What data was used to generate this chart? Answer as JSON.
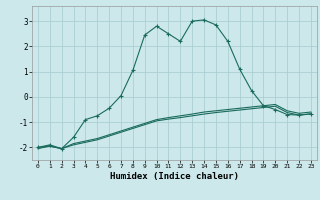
{
  "xlabel": "Humidex (Indice chaleur)",
  "xlim": [
    -0.5,
    23.5
  ],
  "ylim": [
    -2.5,
    3.6
  ],
  "yticks": [
    -2,
    -1,
    0,
    1,
    2,
    3
  ],
  "xticks": [
    0,
    1,
    2,
    3,
    4,
    5,
    6,
    7,
    8,
    9,
    10,
    11,
    12,
    13,
    14,
    15,
    16,
    17,
    18,
    19,
    20,
    21,
    22,
    23
  ],
  "background_color": "#cce8ea",
  "grid_color": "#aacfd3",
  "line_color": "#1a6b5c",
  "line1_x": [
    0,
    1,
    2,
    3,
    4,
    5,
    6,
    7,
    8,
    9,
    10,
    11,
    12,
    13,
    14,
    15,
    16,
    17,
    18,
    19,
    20,
    21,
    22,
    23
  ],
  "line1_y": [
    -2.0,
    -1.95,
    -2.05,
    -1.85,
    -1.75,
    -1.65,
    -1.5,
    -1.35,
    -1.2,
    -1.05,
    -0.9,
    -0.82,
    -0.75,
    -0.68,
    -0.6,
    -0.55,
    -0.5,
    -0.45,
    -0.4,
    -0.35,
    -0.3,
    -0.55,
    -0.65,
    -0.6
  ],
  "line2_x": [
    0,
    1,
    2,
    3,
    4,
    5,
    6,
    7,
    8,
    9,
    10,
    11,
    12,
    13,
    14,
    15,
    16,
    17,
    18,
    19,
    20,
    21,
    22,
    23
  ],
  "line2_y": [
    -2.05,
    -1.95,
    -2.05,
    -1.9,
    -1.8,
    -1.7,
    -1.55,
    -1.4,
    -1.25,
    -1.1,
    -0.95,
    -0.88,
    -0.82,
    -0.75,
    -0.68,
    -0.62,
    -0.57,
    -0.52,
    -0.47,
    -0.42,
    -0.37,
    -0.62,
    -0.72,
    -0.67
  ],
  "line3_x": [
    0,
    1,
    2,
    3,
    4,
    5,
    6,
    7,
    8,
    9,
    10,
    11,
    12,
    13,
    14,
    15,
    16,
    17,
    18,
    19,
    20,
    21,
    22,
    23
  ],
  "line3_y": [
    -2.0,
    -1.9,
    -2.05,
    -1.6,
    -0.9,
    -0.75,
    -0.45,
    0.05,
    1.05,
    2.45,
    2.8,
    2.5,
    2.2,
    3.0,
    3.05,
    2.85,
    2.2,
    1.1,
    0.25,
    -0.35,
    -0.5,
    -0.7,
    -0.72,
    -0.68
  ]
}
